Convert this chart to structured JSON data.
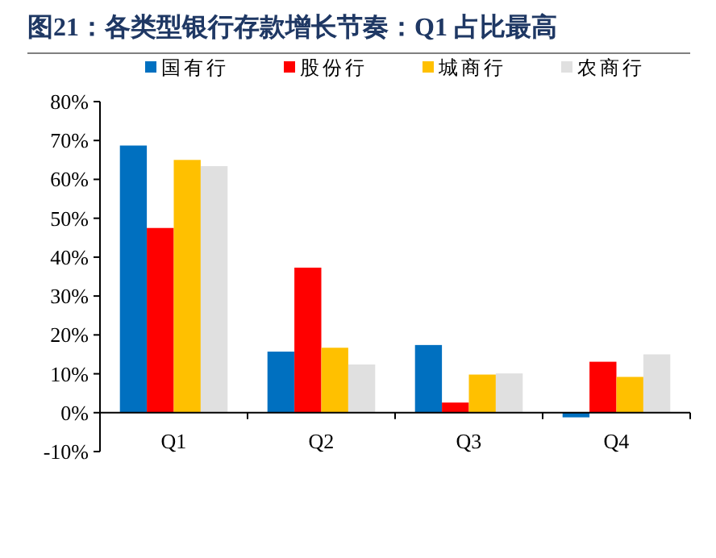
{
  "chart_data": {
    "type": "bar",
    "title": "图21：各类型银行存款增长节奏：Q1 占比最高",
    "categories": [
      "Q1",
      "Q2",
      "Q3",
      "Q4"
    ],
    "series": [
      {
        "name": "国有行",
        "color": "#0070c0",
        "values": [
          68.7,
          15.7,
          17.4,
          -1.2
        ]
      },
      {
        "name": "股份行",
        "color": "#ff0000",
        "values": [
          47.5,
          37.3,
          2.6,
          13.1
        ]
      },
      {
        "name": "城商行",
        "color": "#ffc000",
        "values": [
          65.0,
          16.7,
          9.8,
          9.2
        ]
      },
      {
        "name": "农商行",
        "color": "#e0e0e0",
        "values": [
          63.4,
          12.4,
          10.1,
          15.0
        ]
      }
    ],
    "ylim": [
      -10,
      80
    ],
    "yticks": [
      {
        "value": -10,
        "label": "-10%"
      },
      {
        "value": 0,
        "label": "0%"
      },
      {
        "value": 10,
        "label": "10%"
      },
      {
        "value": 20,
        "label": "20%"
      },
      {
        "value": 30,
        "label": "30%"
      },
      {
        "value": 40,
        "label": "40%"
      },
      {
        "value": 50,
        "label": "50%"
      },
      {
        "value": 60,
        "label": "60%"
      },
      {
        "value": 70,
        "label": "70%"
      },
      {
        "value": 80,
        "label": "80%"
      }
    ],
    "grid": false,
    "legend": "top"
  }
}
